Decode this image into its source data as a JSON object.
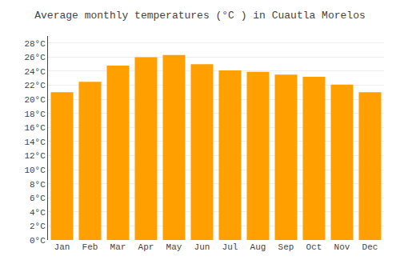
{
  "chart_data": {
    "type": "bar",
    "title": "Average monthly temperatures (°C ) in Cuautla Morelos",
    "categories": [
      "Jan",
      "Feb",
      "Mar",
      "Apr",
      "May",
      "Jun",
      "Jul",
      "Aug",
      "Sep",
      "Oct",
      "Nov",
      "Dec"
    ],
    "values": [
      21.0,
      22.5,
      24.8,
      26.0,
      26.3,
      25.0,
      24.1,
      23.9,
      23.5,
      23.2,
      22.1,
      21.0
    ],
    "color": "#FFA000",
    "ylim": [
      0,
      29
    ],
    "yticks": [
      {
        "value": 0,
        "label": "0°C"
      },
      {
        "value": 2,
        "label": "2°C"
      },
      {
        "value": 4,
        "label": "4°C"
      },
      {
        "value": 6,
        "label": "6°C"
      },
      {
        "value": 8,
        "label": "8°C"
      },
      {
        "value": 10,
        "label": "10°C"
      },
      {
        "value": 12,
        "label": "12°C"
      },
      {
        "value": 14,
        "label": "14°C"
      },
      {
        "value": 16,
        "label": "16°C"
      },
      {
        "value": 18,
        "label": "18°C"
      },
      {
        "value": 20,
        "label": "20°C"
      },
      {
        "value": 22,
        "label": "22°C"
      },
      {
        "value": 24,
        "label": "24°C"
      },
      {
        "value": 26,
        "label": "26°C"
      },
      {
        "value": 28,
        "label": "28°C"
      }
    ],
    "grid": true
  }
}
